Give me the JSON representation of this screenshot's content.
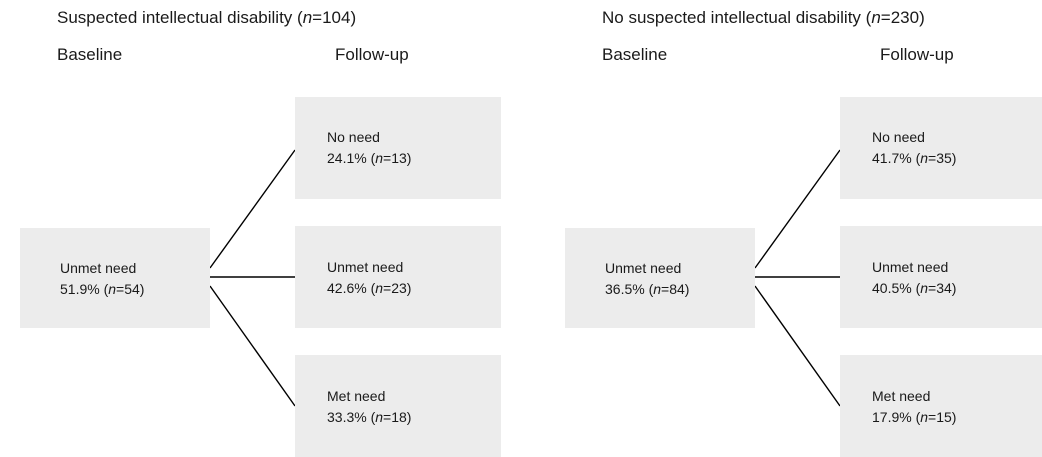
{
  "panels": [
    {
      "title_prefix": "Suspected intellectual disability (",
      "title_n_label": "n",
      "title_n_value": "=104)",
      "baseline_label": "Baseline",
      "followup_label": "Follow-up",
      "baseline": {
        "label": "Unmet need",
        "pct": "51.9% (",
        "n_label": "n",
        "n_value": "=54)"
      },
      "followup": [
        {
          "label": "No need",
          "pct": "24.1% (",
          "n_label": "n",
          "n_value": "=13)"
        },
        {
          "label": "Unmet need",
          "pct": "42.6% (",
          "n_label": "n",
          "n_value": "=23)"
        },
        {
          "label": "Met need",
          "pct": "33.3% (",
          "n_label": "n",
          "n_value": "=18)"
        }
      ]
    },
    {
      "title_prefix": "No suspected intellectual disability (",
      "title_n_label": "n",
      "title_n_value": "=230)",
      "baseline_label": "Baseline",
      "followup_label": "Follow-up",
      "baseline": {
        "label": "Unmet need",
        "pct": "36.5% (",
        "n_label": "n",
        "n_value": "=84)"
      },
      "followup": [
        {
          "label": "No need",
          "pct": "41.7% (",
          "n_label": "n",
          "n_value": "=35)"
        },
        {
          "label": "Unmet need",
          "pct": "40.5% (",
          "n_label": "n",
          "n_value": "=34)"
        },
        {
          "label": "Met need",
          "pct": "17.9% (",
          "n_label": "n",
          "n_value": "=15)"
        }
      ]
    }
  ]
}
